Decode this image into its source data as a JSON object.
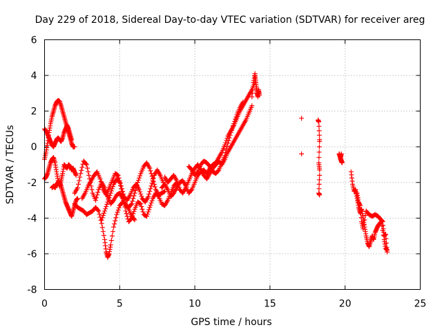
{
  "chart_data": {
    "type": "scatter",
    "title": "Day 229 of 2018, Sidereal Day-to-day VTEC variation (SDTVAR) for receiver areg",
    "xlabel": "GPS time / hours",
    "ylabel": "SDTVAR / TECUs",
    "xlim": [
      0,
      25
    ],
    "ylim": [
      -8,
      6
    ],
    "xticks": [
      "0",
      "5",
      "10",
      "15",
      "20",
      "25"
    ],
    "yticks": [
      "-8",
      "-6",
      "-4",
      "-2",
      "0",
      "2",
      "4",
      "6"
    ],
    "grid": true,
    "marker": "+",
    "color": "#ff0000",
    "series": [
      {
        "name": "SDTVAR",
        "curves": [
          {
            "x": [
              0.0,
              0.1,
              0.2,
              0.3,
              0.4,
              0.5,
              0.6,
              0.7,
              0.8,
              0.9,
              1.0,
              1.1,
              1.2,
              1.3,
              1.4,
              1.5,
              1.6,
              1.7,
              1.8,
              1.9,
              2.0
            ],
            "y": [
              -0.7,
              -0.3,
              0.2,
              0.8,
              1.3,
              1.7,
              2.0,
              2.3,
              2.5,
              2.6,
              2.55,
              2.3,
              2.0,
              1.7,
              1.4,
              1.1,
              0.8,
              0.5,
              0.2,
              0.0,
              0.0
            ]
          },
          {
            "x": [
              0.0,
              0.1,
              0.2,
              0.3,
              0.4,
              0.5,
              0.6,
              0.7,
              0.8,
              0.9,
              1.0,
              1.1,
              1.2,
              1.3,
              1.4,
              1.5,
              1.6,
              1.7,
              1.8
            ],
            "y": [
              1.0,
              0.9,
              0.7,
              0.5,
              0.3,
              0.1,
              0.0,
              0.2,
              0.4,
              0.5,
              0.4,
              0.3,
              0.5,
              0.8,
              1.0,
              1.2,
              1.0,
              0.7,
              0.4
            ]
          },
          {
            "x": [
              0.0,
              0.1,
              0.2,
              0.3,
              0.4,
              0.5,
              0.6,
              0.7,
              0.8,
              0.9,
              1.0,
              1.1,
              1.2,
              1.3,
              1.4,
              1.5,
              1.6,
              1.7,
              1.8,
              1.9,
              2.0,
              2.1,
              2.2
            ],
            "y": [
              -1.8,
              -1.7,
              -1.5,
              -1.2,
              -0.9,
              -0.7,
              -0.6,
              -0.9,
              -1.4,
              -1.9,
              -2.0,
              -2.2,
              -2.5,
              -2.8,
              -3.1,
              -3.3,
              -3.5,
              -3.7,
              -3.9,
              -3.6,
              -3.3,
              -3.0,
              -2.9
            ]
          },
          {
            "x": [
              0.5,
              0.6,
              0.7,
              0.8,
              0.9,
              1.0,
              1.1,
              1.2,
              1.3,
              1.4,
              1.5,
              1.6,
              1.7,
              1.8,
              1.9,
              2.0,
              2.1
            ],
            "y": [
              -2.3,
              -2.2,
              -2.3,
              -2.1,
              -2.0,
              -2.2,
              -1.9,
              -1.5,
              -1.0,
              -1.1,
              -1.2,
              -1.0,
              -1.1,
              -1.3,
              -1.2,
              -1.4,
              -1.6
            ]
          },
          {
            "x": [
              2.0,
              2.2,
              2.4,
              2.6,
              2.8,
              3.0,
              3.2,
              3.4,
              3.6,
              3.8,
              4.0,
              4.1,
              4.2,
              4.3,
              4.4,
              4.6,
              4.8,
              5.0,
              5.2,
              5.4,
              5.6,
              5.8,
              6.0
            ],
            "y": [
              -3.2,
              -3.4,
              -3.5,
              -3.6,
              -3.8,
              -3.7,
              -3.6,
              -3.4,
              -3.6,
              -4.3,
              -5.2,
              -5.9,
              -6.2,
              -6.0,
              -5.5,
              -4.5,
              -3.8,
              -3.3,
              -3.1,
              -3.2,
              -3.5,
              -3.9,
              -4.1
            ]
          },
          {
            "x": [
              2.0,
              2.2,
              2.4,
              2.6,
              2.8,
              3.0,
              3.2,
              3.4,
              3.6,
              3.8,
              4.0,
              4.2,
              4.4,
              4.6,
              4.8,
              5.0,
              5.2,
              5.4,
              5.6,
              5.8,
              6.0,
              6.2,
              6.4,
              6.6,
              6.8,
              7.0,
              7.2,
              7.4,
              7.6,
              7.8,
              8.0
            ],
            "y": [
              -2.6,
              -2.3,
              -1.5,
              -0.8,
              -1.0,
              -1.8,
              -2.6,
              -3.0,
              -2.4,
              -2.0,
              -2.3,
              -2.8,
              -3.2,
              -3.0,
              -2.7,
              -2.6,
              -2.9,
              -3.3,
              -3.4,
              -3.2,
              -2.6,
              -2.0,
              -1.5,
              -1.1,
              -0.9,
              -1.2,
              -1.8,
              -2.4,
              -2.7,
              -2.6,
              -2.5
            ]
          },
          {
            "x": [
              2.5,
              2.7,
              2.9,
              3.1,
              3.3,
              3.5,
              3.7,
              3.9,
              4.1,
              4.3,
              4.5,
              4.7,
              4.9,
              5.1,
              5.3,
              5.5,
              5.7,
              5.9,
              6.1,
              6.3,
              6.5,
              6.7,
              6.9,
              7.1,
              7.3,
              7.5,
              7.7,
              7.9
            ],
            "y": [
              -2.9,
              -2.6,
              -2.2,
              -1.9,
              -1.6,
              -1.4,
              -1.8,
              -2.4,
              -2.7,
              -2.3,
              -1.9,
              -1.5,
              -1.6,
              -2.2,
              -2.8,
              -3.0,
              -2.7,
              -2.3,
              -2.1,
              -2.4,
              -2.9,
              -3.1,
              -2.8,
              -2.2,
              -1.6,
              -1.3,
              -1.6,
              -2.0
            ]
          },
          {
            "x": [
              3.8,
              4.0,
              4.2,
              4.4,
              4.6,
              4.8,
              5.0,
              5.2,
              5.4,
              5.6,
              5.8,
              6.0,
              6.2,
              6.4,
              6.6,
              6.8,
              7.0,
              7.2,
              7.4,
              7.6,
              7.8,
              8.0,
              8.2,
              8.4,
              8.6,
              8.8
            ],
            "y": [
              -4.1,
              -3.6,
              -3.1,
              -2.6,
              -2.1,
              -1.8,
              -2.0,
              -2.7,
              -3.6,
              -4.2,
              -4.0,
              -3.5,
              -3.1,
              -3.2,
              -3.8,
              -3.9,
              -3.4,
              -2.9,
              -2.6,
              -2.8,
              -3.2,
              -3.3,
              -3.0,
              -2.6,
              -2.2,
              -2.0
            ]
          },
          {
            "x": [
              7.8,
              8.0,
              8.2,
              8.4,
              8.6,
              8.8,
              9.0,
              9.2,
              9.4,
              9.6,
              9.8,
              10.0,
              10.2,
              10.4,
              10.6,
              10.8,
              11.0,
              11.2,
              11.4,
              11.6,
              11.8,
              12.0,
              12.2,
              12.4,
              12.6,
              12.8,
              13.0,
              13.2,
              13.4,
              13.6,
              13.8,
              14.0
            ],
            "y": [
              -2.3,
              -2.1,
              -2.4,
              -2.8,
              -2.6,
              -2.3,
              -2.0,
              -1.9,
              -2.2,
              -2.6,
              -2.4,
              -2.0,
              -1.6,
              -1.4,
              -1.3,
              -1.5,
              -1.2,
              -1.0,
              -0.9,
              -0.6,
              -0.3,
              0.1,
              0.6,
              0.9,
              1.2,
              1.6,
              2.0,
              2.3,
              2.6,
              2.9,
              3.2,
              3.6
            ]
          },
          {
            "x": [
              8.0,
              8.2,
              8.4,
              8.6,
              8.8,
              9.0,
              9.2,
              9.4,
              9.6,
              9.8,
              10.0,
              10.2,
              10.4,
              10.6,
              10.8,
              11.0,
              11.2,
              11.4,
              11.6,
              11.8,
              12.0,
              12.2,
              12.4,
              12.6,
              12.8,
              13.0,
              13.2,
              13.4,
              13.6,
              13.8
            ],
            "y": [
              -1.7,
              -2.0,
              -1.8,
              -1.6,
              -1.9,
              -2.4,
              -2.6,
              -2.3,
              -1.9,
              -1.5,
              -1.2,
              -1.0,
              -1.3,
              -1.6,
              -1.8,
              -1.5,
              -1.2,
              -1.0,
              -0.8,
              -1.0,
              -0.7,
              -0.3,
              0.0,
              0.3,
              0.6,
              0.9,
              1.2,
              1.5,
              1.9,
              2.3
            ]
          },
          {
            "x": [
              9.6,
              9.8,
              10.0,
              10.2,
              10.4,
              10.6,
              10.8,
              11.0,
              11.2,
              11.4,
              11.6,
              11.8,
              12.0,
              12.2,
              12.4,
              12.6,
              12.8,
              13.0,
              13.2
            ],
            "y": [
              -1.1,
              -1.3,
              -1.6,
              -1.4,
              -1.0,
              -0.8,
              -0.9,
              -1.1,
              -1.4,
              -1.5,
              -1.3,
              -0.9,
              -0.5,
              0.2,
              0.8,
              1.3,
              1.8,
              2.2,
              2.5
            ]
          },
          {
            "x": [
              13.8,
              13.9,
              14.0,
              14.05,
              14.1,
              14.15,
              14.2,
              14.25,
              14.3
            ],
            "y": [
              2.8,
              3.6,
              4.1,
              3.7,
              3.3,
              3.0,
              2.8,
              3.2,
              2.9
            ]
          },
          {
            "x": [
              17.1,
              17.1,
              18.2,
              18.25,
              18.3,
              18.3,
              18.25,
              18.3,
              18.3,
              18.25,
              18.3
            ],
            "y": [
              1.6,
              -0.4,
              1.5,
              1.4,
              0.4,
              0.3,
              -0.9,
              -1.3,
              -1.6,
              -2.6,
              -2.7
            ]
          },
          {
            "x": [
              19.6,
              19.65,
              19.7,
              19.75,
              19.8,
              19.7,
              19.75
            ],
            "y": [
              -0.4,
              -0.5,
              -0.7,
              -0.8,
              -0.9,
              -0.6,
              -0.4
            ]
          },
          {
            "x": [
              20.4,
              20.5,
              20.6,
              20.7,
              20.8,
              20.9,
              21.0,
              21.1,
              21.2,
              21.3,
              21.4,
              21.5,
              21.6,
              21.7,
              21.8,
              21.9,
              22.0,
              22.1,
              22.2,
              22.4,
              22.6,
              22.7,
              22.8
            ],
            "y": [
              -1.4,
              -2.1,
              -2.5,
              -2.4,
              -2.9,
              -3.4,
              -3.7,
              -3.5,
              -4.0,
              -4.5,
              -5.0,
              -5.4,
              -5.6,
              -5.3,
              -5.0,
              -5.2,
              -4.8,
              -4.6,
              -4.4,
              -4.2,
              -5.2,
              -5.7,
              -5.8
            ]
          },
          {
            "x": [
              20.8,
              20.9,
              21.0,
              21.1,
              21.2,
              21.4,
              21.6,
              21.8,
              22.0,
              22.2,
              22.4,
              22.5,
              22.6,
              22.7,
              22.8
            ],
            "y": [
              -2.6,
              -3.1,
              -3.3,
              -4.2,
              -4.6,
              -3.6,
              -3.8,
              -3.9,
              -3.8,
              -3.9,
              -4.1,
              -4.2,
              -5.0,
              -4.9,
              -5.9
            ]
          }
        ]
      }
    ]
  }
}
